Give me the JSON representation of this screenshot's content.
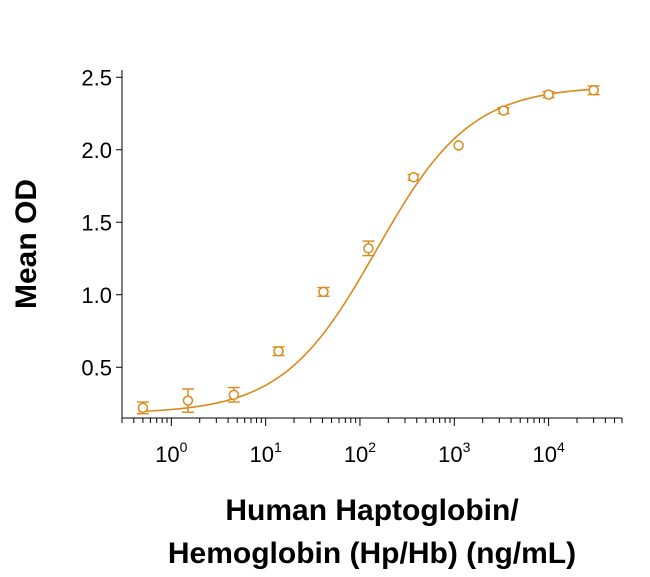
{
  "chart_data": {
    "type": "scatter",
    "xscale": "log",
    "xlim": [
      0.3,
      60000
    ],
    "ylim": [
      0.15,
      2.55
    ],
    "ylabel": "Mean OD",
    "xlabel_lines": [
      "Human Haptoglobin/",
      "Hemoglobin (Hp/Hb) (ng/mL)"
    ],
    "y_ticks": [
      {
        "value": 0.5,
        "label": "0.5"
      },
      {
        "value": 1.0,
        "label": "1.0"
      },
      {
        "value": 1.5,
        "label": "1.5"
      },
      {
        "value": 2.0,
        "label": "2.0"
      },
      {
        "value": 2.5,
        "label": "2.5"
      }
    ],
    "x_ticks": [
      {
        "value": 1,
        "base": "10",
        "exp": "0"
      },
      {
        "value": 10,
        "base": "10",
        "exp": "1"
      },
      {
        "value": 100,
        "base": "10",
        "exp": "2"
      },
      {
        "value": 1000,
        "base": "10",
        "exp": "3"
      },
      {
        "value": 10000,
        "base": "10",
        "exp": "4"
      }
    ],
    "color": "#D98A1A",
    "grid": false,
    "series": [
      {
        "x": [
          0.5,
          1.5,
          4.6,
          13.7,
          41,
          123,
          370,
          1111,
          3333,
          10000,
          30000
        ],
        "y": [
          0.22,
          0.27,
          0.31,
          0.61,
          1.02,
          1.32,
          1.81,
          2.03,
          2.27,
          2.38,
          2.41
        ],
        "err": [
          0.04,
          0.08,
          0.05,
          0.03,
          0.03,
          0.05,
          0.02,
          0.0,
          0.02,
          0.02,
          0.03
        ]
      }
    ],
    "fit": {
      "bottom": 0.18,
      "top": 2.44,
      "ec50": 150,
      "hill": 0.87
    }
  }
}
